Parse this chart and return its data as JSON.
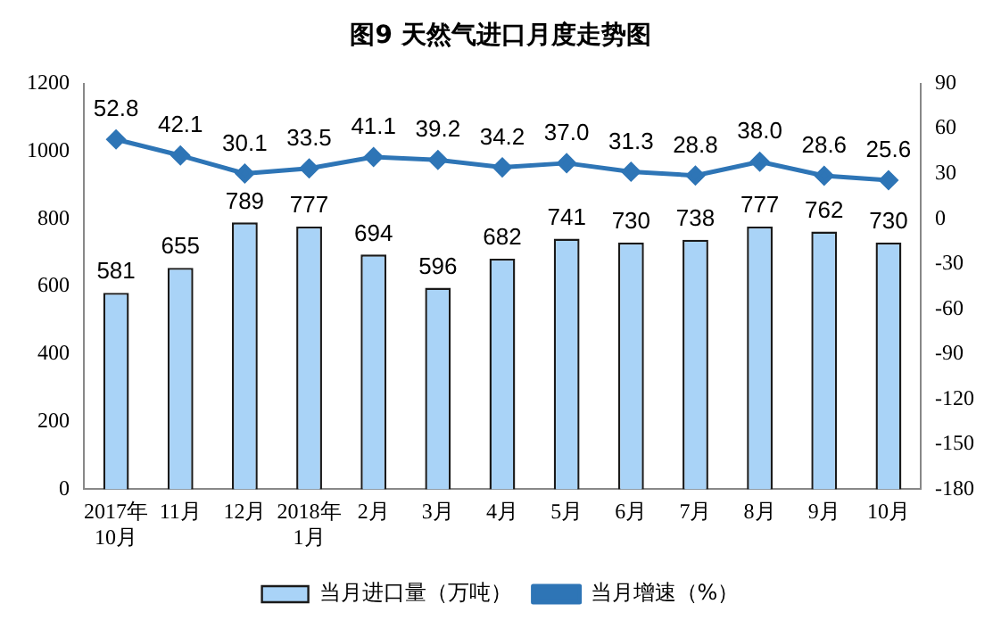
{
  "chart_data": {
    "type": "bar",
    "title": "图9 天然气进口月度走势图",
    "categories": [
      "2017年\n10月",
      "11月",
      "12月",
      "2018年\n1月",
      "2月",
      "3月",
      "4月",
      "5月",
      "6月",
      "7月",
      "8月",
      "9月",
      "10月"
    ],
    "series": [
      {
        "name": "当月进口量（万吨）",
        "color": "#a9d3f7",
        "values": [
          581,
          655,
          789,
          777,
          694,
          596,
          682,
          741,
          730,
          738,
          777,
          762,
          730
        ]
      },
      {
        "name": "当月增速（%）",
        "type": "line",
        "axis": "y2",
        "color": "#2e75b6",
        "values": [
          52.8,
          42.1,
          30.1,
          33.5,
          41.1,
          39.2,
          34.2,
          37.0,
          31.3,
          28.8,
          38.0,
          28.6,
          25.6
        ],
        "value_labels": [
          "52.8",
          "42.1",
          "30.1",
          "33.5",
          "41.1",
          "39.2",
          "34.2",
          "37.0",
          "31.3",
          "28.8",
          "38.0",
          "28.6",
          "25.6"
        ]
      }
    ],
    "ylim": [
      0,
      1200
    ],
    "yticks": [
      0,
      200,
      400,
      600,
      800,
      1000,
      1200
    ],
    "y2lim": [
      -180,
      90
    ],
    "y2ticks": [
      -180,
      -150,
      -120,
      -90,
      -60,
      -30,
      0,
      30,
      60,
      90
    ],
    "data_labels": true,
    "grid": false,
    "legend": "bottom",
    "marker": "diamond",
    "line_style": "solid"
  }
}
